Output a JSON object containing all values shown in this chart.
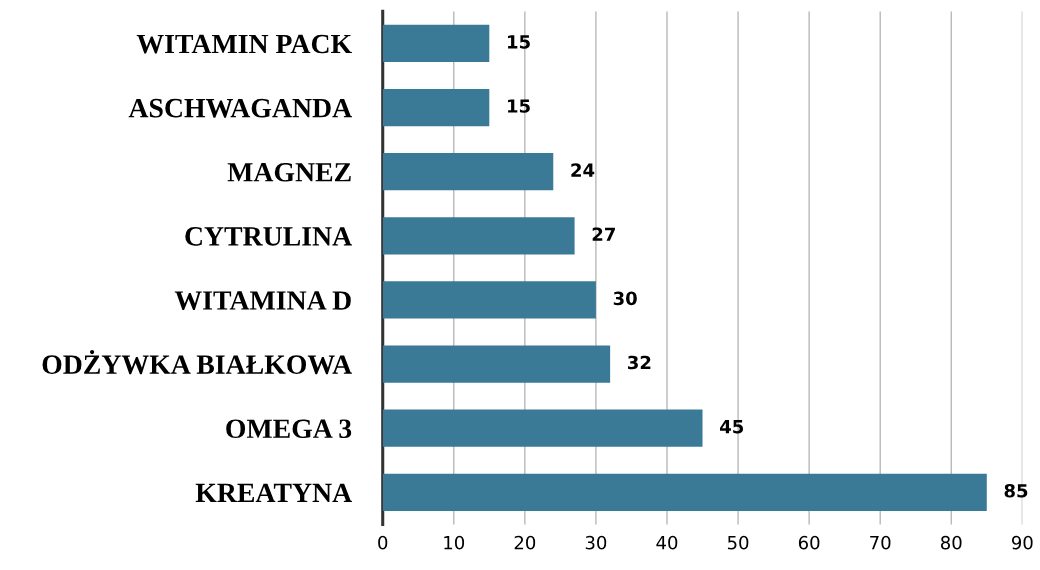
{
  "chart_data": {
    "type": "bar",
    "orientation": "horizontal",
    "categories": [
      "WITAMIN PACK",
      "ASCHWAGANDA",
      "MAGNEZ",
      "CYTRULINA",
      "WITAMINA D",
      "ODŻYWKA BIAŁKOWA",
      "OMEGA 3",
      "KREATYNA"
    ],
    "values": [
      15,
      15,
      24,
      27,
      30,
      32,
      45,
      85
    ],
    "color": "#3a7a96",
    "xlim": [
      0,
      90
    ],
    "xticks": [
      0,
      10,
      20,
      30,
      40,
      50,
      60,
      70,
      80,
      90
    ],
    "grid": "x",
    "data_labels": true
  }
}
